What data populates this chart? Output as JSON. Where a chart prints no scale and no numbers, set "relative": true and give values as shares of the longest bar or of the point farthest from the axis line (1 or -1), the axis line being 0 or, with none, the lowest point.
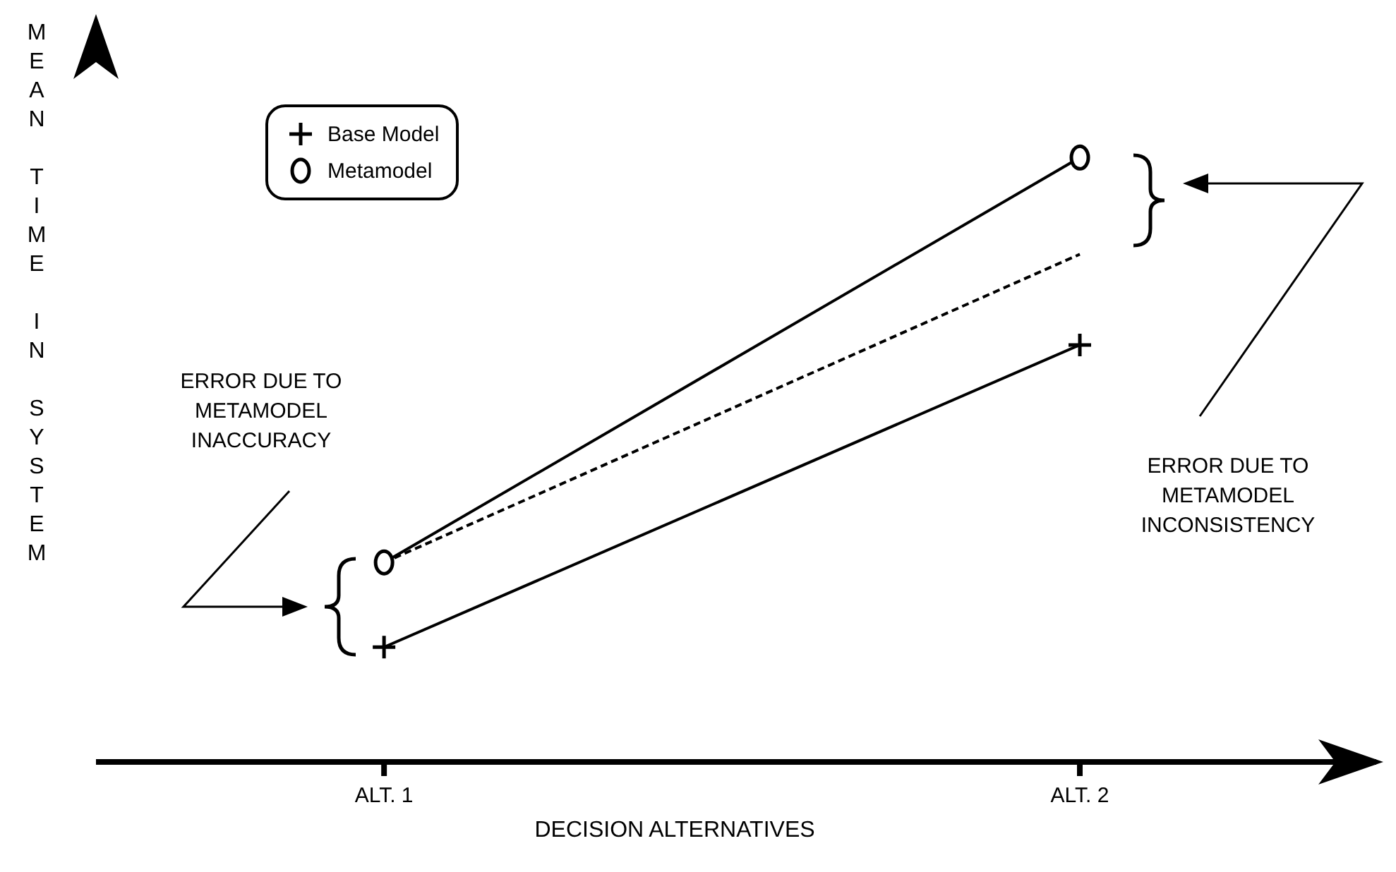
{
  "chart_data": {
    "type": "line",
    "relative": true,
    "xlabel": "DECISION ALTERNATIVES",
    "ylabel": "MEAN TIME IN SYSTEM",
    "categories": [
      "ALT. 1",
      "ALT. 2"
    ],
    "series": [
      {
        "name": "Base Model",
        "color": "#000000",
        "values": [
          0.19,
          0.69
        ],
        "marker": "cross",
        "line_style": "solid"
      },
      {
        "name": "Metamodel",
        "color": "#000000",
        "values": [
          0.33,
          1
        ],
        "marker": "circle",
        "line_style": "solid"
      },
      {
        "color": "#000000",
        "values": [
          0.33,
          0.84
        ],
        "marker": "none",
        "line_style": "dashed"
      }
    ],
    "legend": "top left",
    "grid": false,
    "annotations": [
      "ERROR DUE TO METAMODEL INACCURACY",
      "ERROR DUE TO METAMODEL INCONSISTENCY"
    ]
  }
}
